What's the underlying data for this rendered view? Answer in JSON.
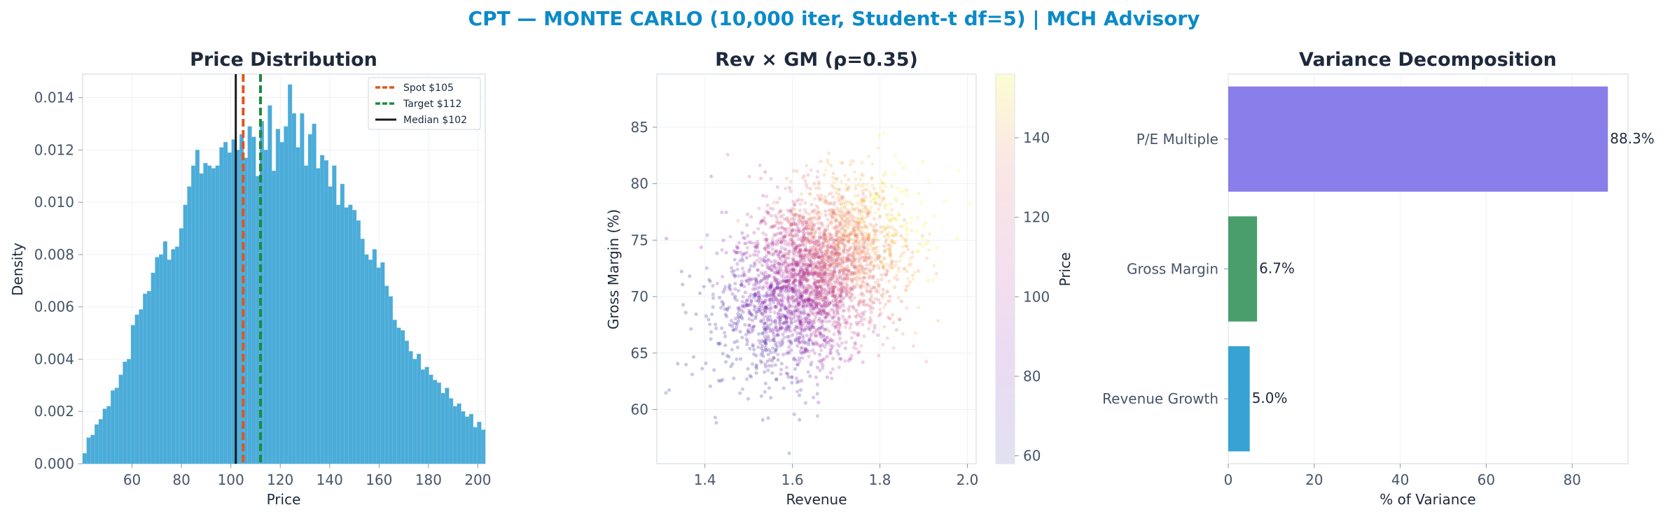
{
  "suptitle": "CPT — MONTE CARLO (10,000 iter, Student-t df=5) | MCH Advisory",
  "colors": {
    "title": "#0b8ac9",
    "hist": "#4bacd9",
    "spot": "#e0561f",
    "target": "#1f8a3f",
    "median": "#1a1a1a",
    "pe": "#897ee9",
    "gm": "#4a9e6c",
    "rev": "#36a3d4"
  },
  "chart_data": [
    {
      "type": "bar",
      "title": "Price Distribution",
      "xlabel": "Price",
      "ylabel": "Density",
      "xlim": [
        40,
        203
      ],
      "ylim": [
        0,
        0.0149
      ],
      "xticks": [
        "60",
        "80",
        "100",
        "120",
        "140",
        "160",
        "180",
        "200"
      ],
      "yticks": [
        "0.000",
        "0.002",
        "0.004",
        "0.006",
        "0.008",
        "0.010",
        "0.012",
        "0.014"
      ],
      "bin_start": 40,
      "bin_width": 1.63,
      "values": [
        0.0004,
        0.001,
        0.0011,
        0.0015,
        0.0017,
        0.0021,
        0.0022,
        0.0028,
        0.0029,
        0.0034,
        0.0039,
        0.004,
        0.0053,
        0.0057,
        0.0059,
        0.0065,
        0.0066,
        0.0073,
        0.0079,
        0.008,
        0.0085,
        0.0078,
        0.0082,
        0.0083,
        0.009,
        0.0099,
        0.0106,
        0.0114,
        0.012,
        0.0111,
        0.0115,
        0.0114,
        0.0113,
        0.0114,
        0.0121,
        0.0123,
        0.0119,
        0.0124,
        0.012,
        0.0126,
        0.0117,
        0.0129,
        0.0125,
        0.011,
        0.0131,
        0.012,
        0.0137,
        0.0112,
        0.0128,
        0.0123,
        0.0129,
        0.0145,
        0.0134,
        0.0121,
        0.0134,
        0.0114,
        0.0126,
        0.013,
        0.0113,
        0.0118,
        0.0116,
        0.0106,
        0.0114,
        0.0099,
        0.0107,
        0.0098,
        0.0099,
        0.0097,
        0.0093,
        0.0086,
        0.008,
        0.0078,
        0.0082,
        0.0075,
        0.0077,
        0.0068,
        0.0064,
        0.0055,
        0.0052,
        0.0051,
        0.0047,
        0.0043,
        0.004,
        0.0042,
        0.0036,
        0.0037,
        0.0034,
        0.0032,
        0.0031,
        0.0027,
        0.0029,
        0.0025,
        0.0022,
        0.0023,
        0.002,
        0.0018,
        0.0019,
        0.0014,
        0.0016,
        0.0013,
        0.0011,
        0.0011,
        0.0012,
        0.001,
        0.0009,
        0.0011,
        0.0008,
        0.0009,
        0.0007,
        0.0006,
        0.0006,
        0.0005,
        0.0004,
        0.0004,
        0.0003,
        0.0003,
        0.0002,
        0.0003,
        0.0002,
        0.0002,
        0.0002,
        0.0002,
        0.0001,
        0.0002,
        0.0001,
        0.0002,
        0.0001,
        0.0001,
        0.0001,
        0.0001,
        0.0001,
        0.0001,
        0.0001
      ],
      "reference_lines": [
        {
          "name": "Spot $105",
          "x": 105,
          "style": "dashed",
          "color": "#e0561f"
        },
        {
          "name": "Target $112",
          "x": 112,
          "style": "dashed",
          "color": "#1f8a3f"
        },
        {
          "name": "Median $102",
          "x": 102,
          "style": "solid",
          "color": "#1a1a1a"
        }
      ],
      "legend_position": "top-right",
      "grid": true
    },
    {
      "type": "scatter",
      "title": "Rev × GM (ρ=0.35)",
      "xlabel": "Revenue",
      "ylabel": "Gross Margin (%)",
      "xlim": [
        1.29,
        2.02
      ],
      "ylim": [
        55.2,
        89.7
      ],
      "xticks": [
        1.4,
        1.6,
        1.8,
        2.0
      ],
      "yticks": [
        60,
        65,
        70,
        75,
        80,
        85
      ],
      "n_points": 10000,
      "revenue_mean": 1.65,
      "revenue_sd": 0.1,
      "gm_mean": 72,
      "gm_sd": 4,
      "correlation": 0.35,
      "colorbar": {
        "label": "Price",
        "range": [
          58,
          156
        ],
        "ticks": [
          60,
          80,
          100,
          120,
          140
        ],
        "colormap": "plasma"
      },
      "grid": true
    },
    {
      "type": "bar",
      "orientation": "horizontal",
      "title": "Variance Decomposition",
      "xlabel": "% of Variance",
      "xlim": [
        0,
        93
      ],
      "xticks": [
        0,
        20,
        40,
        60,
        80
      ],
      "categories": [
        "P/E Multiple",
        "Gross Margin",
        "Revenue Growth"
      ],
      "values": [
        88.3,
        6.7,
        5.0
      ],
      "labels": [
        "88.3%",
        "6.7%",
        "5.0%"
      ],
      "grid": true
    }
  ]
}
